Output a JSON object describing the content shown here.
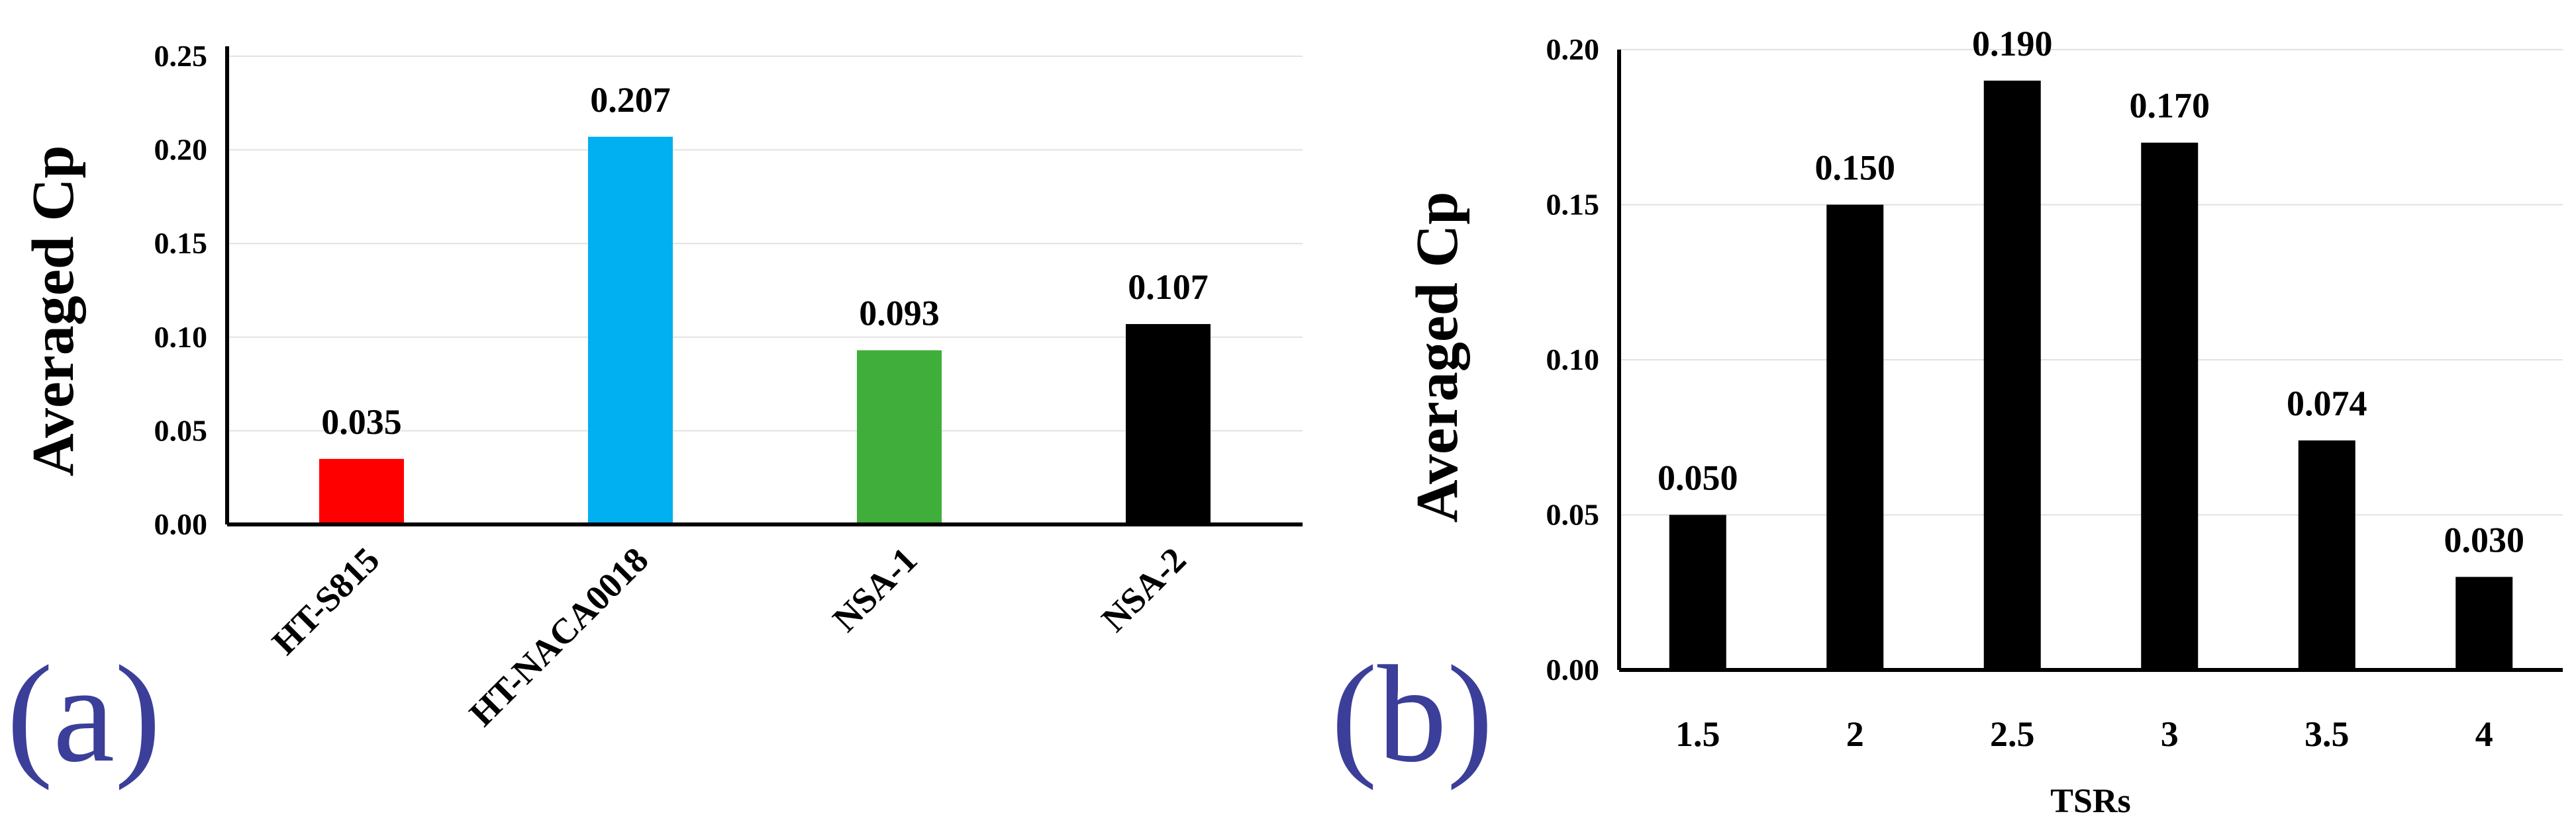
{
  "chart_data": [
    {
      "type": "bar",
      "panel_label": "(a)",
      "categories": [
        "HT-S815",
        "HT-NACA0018",
        "NSA-1",
        "NSA-2"
      ],
      "values": [
        0.035,
        0.207,
        0.093,
        0.107
      ],
      "data_labels": [
        "0.035",
        "0.207",
        "0.093",
        "0.107"
      ],
      "bar_colors": [
        "#ff0000",
        "#00b0f0",
        "#3fae3a",
        "#000000"
      ],
      "ylabel": "Averaged Cp",
      "xlabel": "",
      "ylim": [
        0,
        0.25
      ],
      "yticks": [
        "0.00",
        "0.05",
        "0.10",
        "0.15",
        "0.20",
        "0.25"
      ],
      "grid": true
    },
    {
      "type": "bar",
      "panel_label": "(b)",
      "categories": [
        "1.5",
        "2",
        "2.5",
        "3",
        "3.5",
        "4"
      ],
      "values": [
        0.05,
        0.15,
        0.19,
        0.17,
        0.074,
        0.03
      ],
      "data_labels": [
        "0.050",
        "0.150",
        "0.190",
        "0.170",
        "0.074",
        "0.030"
      ],
      "bar_colors": [
        "#000000",
        "#000000",
        "#000000",
        "#000000",
        "#000000",
        "#000000"
      ],
      "ylabel": "Averaged Cp",
      "xlabel": "TSRs",
      "ylim": [
        0,
        0.2
      ],
      "yticks": [
        "0.00",
        "0.05",
        "0.10",
        "0.15",
        "0.20"
      ],
      "grid": true
    }
  ]
}
